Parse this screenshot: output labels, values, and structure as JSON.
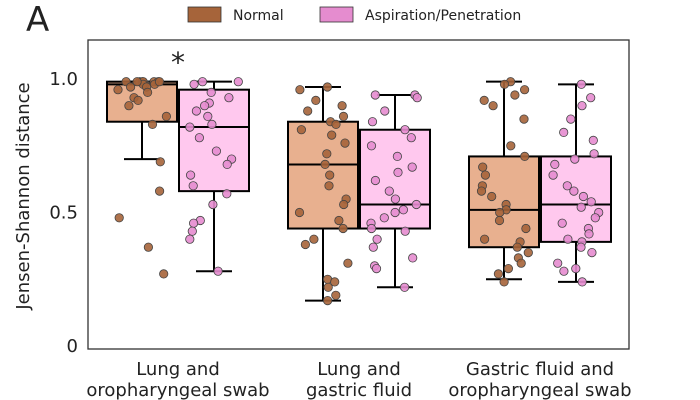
{
  "panel_letter": "A",
  "colors": {
    "normal_box": "#e8b08f",
    "normal_point": "#a6643a",
    "asp_box": "#ffc8ee",
    "asp_point": "#e58ccf",
    "edge": "#000000"
  },
  "chart_data": {
    "type": "box",
    "ylabel": "Jensen-Shannon distance",
    "yticks": [
      {
        "value": 0,
        "label": "0"
      },
      {
        "value": 0.5,
        "label": "0.5"
      },
      {
        "value": 1.0,
        "label": "1.0"
      }
    ],
    "ylim": [
      0,
      1.15
    ],
    "legend": {
      "placement": "top",
      "entries": [
        "Normal",
        "Aspiration/Penetration"
      ]
    },
    "categories": [
      {
        "lines": [
          "Lung and",
          "oropharyngeal swab"
        ],
        "significance": "*"
      },
      {
        "lines": [
          "Lung and",
          "gastric fluid"
        ],
        "significance": ""
      },
      {
        "lines": [
          "Gastric fluid and",
          "oropharyngeal swab"
        ],
        "significance": ""
      }
    ],
    "series": [
      {
        "name": "Normal",
        "boxes": [
          {
            "whisker_low": 0.7,
            "q1": 0.84,
            "median": 0.98,
            "q3": 0.99,
            "whisker_high": 0.99,
            "points": [
              0.99,
              0.99,
              0.98,
              0.99,
              0.97,
              0.99,
              0.98,
              0.99,
              0.99,
              0.98,
              0.96,
              0.97,
              0.95,
              0.99,
              0.99,
              0.93,
              0.92,
              0.9,
              0.86,
              0.83,
              0.69,
              0.58,
              0.48,
              0.37,
              0.27
            ]
          },
          {
            "whisker_low": 0.17,
            "q1": 0.44,
            "median": 0.68,
            "q3": 0.84,
            "whisker_high": 0.97,
            "points": [
              0.97,
              0.96,
              0.92,
              0.9,
              0.88,
              0.86,
              0.84,
              0.83,
              0.81,
              0.79,
              0.76,
              0.72,
              0.68,
              0.64,
              0.6,
              0.55,
              0.53,
              0.5,
              0.47,
              0.44,
              0.4,
              0.38,
              0.31,
              0.25,
              0.24,
              0.22,
              0.19,
              0.17
            ]
          },
          {
            "whisker_low": 0.25,
            "q1": 0.37,
            "median": 0.51,
            "q3": 0.71,
            "whisker_high": 0.99,
            "points": [
              0.99,
              0.98,
              0.96,
              0.94,
              0.92,
              0.9,
              0.85,
              0.75,
              0.71,
              0.67,
              0.64,
              0.6,
              0.58,
              0.56,
              0.53,
              0.51,
              0.5,
              0.47,
              0.44,
              0.4,
              0.39,
              0.37,
              0.35,
              0.33,
              0.31,
              0.29,
              0.27,
              0.24
            ]
          }
        ]
      },
      {
        "name": "Aspiration/Penetration",
        "boxes": [
          {
            "whisker_low": 0.28,
            "q1": 0.58,
            "median": 0.82,
            "q3": 0.96,
            "whisker_high": 0.99,
            "points": [
              0.99,
              0.99,
              0.98,
              0.95,
              0.93,
              0.91,
              0.9,
              0.88,
              0.86,
              0.83,
              0.82,
              0.78,
              0.73,
              0.7,
              0.68,
              0.64,
              0.6,
              0.57,
              0.53,
              0.47,
              0.46,
              0.43,
              0.4,
              0.28
            ]
          },
          {
            "whisker_low": 0.22,
            "q1": 0.44,
            "median": 0.53,
            "q3": 0.81,
            "whisker_high": 0.94,
            "points": [
              0.94,
              0.94,
              0.93,
              0.88,
              0.84,
              0.81,
              0.78,
              0.75,
              0.71,
              0.67,
              0.65,
              0.62,
              0.58,
              0.55,
              0.53,
              0.51,
              0.5,
              0.48,
              0.46,
              0.44,
              0.43,
              0.4,
              0.37,
              0.33,
              0.3,
              0.29,
              0.22
            ]
          },
          {
            "whisker_low": 0.24,
            "q1": 0.39,
            "median": 0.53,
            "q3": 0.71,
            "whisker_high": 0.98,
            "points": [
              0.98,
              0.93,
              0.9,
              0.85,
              0.8,
              0.77,
              0.72,
              0.7,
              0.68,
              0.64,
              0.6,
              0.58,
              0.56,
              0.54,
              0.52,
              0.5,
              0.48,
              0.46,
              0.44,
              0.42,
              0.4,
              0.39,
              0.37,
              0.35,
              0.31,
              0.29,
              0.28,
              0.24
            ]
          }
        ]
      }
    ]
  }
}
